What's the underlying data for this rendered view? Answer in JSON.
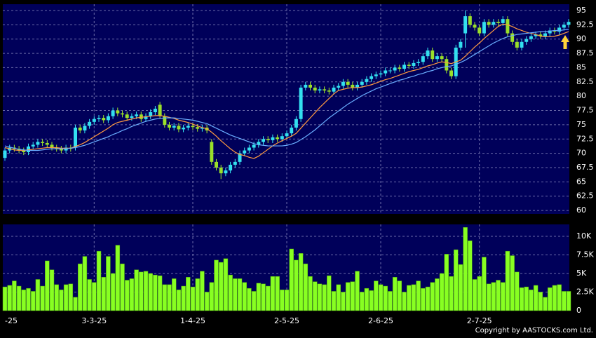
{
  "chart_data": {
    "type": "candlestick",
    "up_color": "#33e0f0",
    "down_color": "#9ae02a",
    "grid": true,
    "x_labels": [
      {
        "index": 0,
        "label": "-25"
      },
      {
        "index": 19,
        "label": "3-3-25"
      },
      {
        "index": 40,
        "label": "1-4-25"
      },
      {
        "index": 60,
        "label": "2-5-25"
      },
      {
        "index": 80,
        "label": "2-6-25"
      },
      {
        "index": 101,
        "label": "2-7-25"
      }
    ],
    "ylim": [
      59.4,
      96.1
    ],
    "yticks": [
      60,
      62.5,
      65,
      67.5,
      70,
      72.5,
      75,
      77.5,
      80,
      82.5,
      85,
      87.5,
      90,
      92.5,
      95
    ],
    "open": [
      69.2,
      70.5,
      71,
      70.8,
      70.5,
      70.2,
      71.2,
      71.5,
      72,
      71.8,
      71.5,
      71,
      70.8,
      70.5,
      71,
      71,
      74.5,
      74,
      74.8,
      75.5,
      76,
      76.2,
      75.8,
      76.5,
      77.5,
      77,
      76.8,
      76.2,
      76.5,
      76.8,
      76,
      76.5,
      77.2,
      78.5,
      76.5,
      75,
      74.5,
      74.8,
      74.2,
      74.5,
      74.8,
      74.6,
      74.3,
      74.5,
      72,
      68.5,
      67.5,
      66.5,
      67,
      68,
      68.5,
      70,
      70.5,
      71,
      71.5,
      72,
      72.5,
      72.3,
      72.8,
      72.5,
      73,
      73.5,
      74.5,
      76,
      81.5,
      82,
      81.5,
      81,
      81.2,
      81,
      80.8,
      81.5,
      81.8,
      82.5,
      82,
      81.5,
      82,
      82.5,
      83,
      83.5,
      83.8,
      84,
      84.5,
      84.5,
      85,
      84.8,
      85.5,
      85.3,
      85.8,
      86,
      87,
      88,
      86.5,
      87,
      86.5,
      84.5,
      83.5,
      88.5,
      91,
      94,
      92.5,
      92,
      91,
      93,
      92.5,
      93,
      92.8,
      93.5,
      91,
      89.5,
      88.5,
      89.5,
      90,
      90.5,
      90.8,
      90.5,
      91,
      91.5,
      91.3,
      92,
      92.5
    ],
    "high": [
      71,
      71.5,
      71.5,
      71.3,
      71,
      71.7,
      72,
      72.5,
      72.5,
      72.3,
      72,
      71.5,
      71.3,
      71.5,
      71.5,
      75,
      75,
      75.3,
      76,
      76.5,
      76.7,
      76.7,
      77,
      78,
      78,
      77.5,
      77.3,
      77,
      77.3,
      77.3,
      77,
      77.7,
      78.3,
      79,
      77,
      75.5,
      75.3,
      75.3,
      75,
      75.3,
      75.3,
      75.1,
      75,
      75,
      72.5,
      69,
      68,
      67.5,
      68.5,
      69,
      70.5,
      71,
      71.5,
      72,
      72.5,
      73,
      73,
      73.3,
      73.3,
      73.5,
      74,
      75,
      76.5,
      82,
      82.5,
      82.5,
      82,
      81.7,
      81.7,
      81.5,
      82,
      82.3,
      83,
      83,
      82.5,
      82.5,
      83,
      83.5,
      84,
      84.3,
      84.5,
      85,
      85,
      85.5,
      85.5,
      86,
      86,
      86.3,
      86.5,
      87.5,
      88.5,
      88.5,
      87.5,
      87.5,
      87,
      85,
      89,
      90,
      95,
      94.5,
      93,
      92.5,
      93.5,
      93.5,
      93.5,
      93.5,
      94,
      94,
      91.5,
      90,
      90,
      90.5,
      91,
      91.3,
      91.3,
      91.5,
      92,
      92,
      92.5,
      93,
      93.5
    ],
    "low": [
      68.7,
      70,
      70.3,
      70,
      69.7,
      69.7,
      70.7,
      71,
      71.3,
      71,
      70.5,
      70.3,
      70,
      70,
      70.3,
      70.5,
      73.5,
      73.5,
      74.3,
      75,
      75.5,
      75.3,
      75.3,
      76,
      76.5,
      76.3,
      75.7,
      75.7,
      76,
      75.5,
      75.5,
      76,
      76.7,
      76,
      74.5,
      74,
      74,
      73.7,
      73.7,
      74,
      74.1,
      73.8,
      73.8,
      73.5,
      68,
      67,
      65.5,
      66,
      66.5,
      67.5,
      68,
      69.5,
      70,
      70.5,
      71,
      71.5,
      71.8,
      71.8,
      72,
      72,
      72.5,
      73,
      74,
      75.5,
      81,
      81,
      80.5,
      80.5,
      80.5,
      80.3,
      80.3,
      81,
      81.3,
      81.5,
      81,
      81,
      81.5,
      82,
      82.5,
      83,
      83.3,
      83.5,
      84,
      84,
      84.3,
      84.3,
      84.8,
      84.8,
      85.3,
      85.5,
      86.5,
      86,
      86,
      86,
      84,
      83,
      83,
      88,
      88.5,
      92,
      91.5,
      90.5,
      90.5,
      92,
      92,
      92.3,
      92.3,
      90.5,
      89,
      88,
      88,
      89,
      89.5,
      90,
      90,
      90,
      90.5,
      90.8,
      90.8,
      91.5,
      92
    ],
    "close": [
      70.5,
      71,
      70.8,
      70.5,
      70.2,
      71.2,
      71.5,
      72,
      71.8,
      71.5,
      71,
      70.8,
      70.5,
      71,
      70.8,
      74.5,
      74,
      74.8,
      75.5,
      76,
      76.2,
      75.8,
      76.5,
      77.5,
      77,
      76.8,
      76.2,
      76.5,
      76.8,
      76,
      76.5,
      77.2,
      77.8,
      76.5,
      75,
      74.5,
      74.8,
      74.2,
      74.5,
      74.8,
      74.6,
      74.3,
      74.5,
      74,
      68.5,
      67.5,
      66.5,
      67,
      68,
      68.5,
      70,
      70.5,
      71,
      71.5,
      72,
      72.5,
      72.3,
      72.8,
      72.5,
      73,
      73.5,
      74.5,
      76,
      81.5,
      82,
      81.5,
      81,
      81.2,
      81,
      80.8,
      81.5,
      81.8,
      82.5,
      82,
      81.5,
      82,
      82.5,
      83,
      83.5,
      83.8,
      84,
      84.5,
      84.5,
      85,
      84.8,
      85.5,
      85.3,
      85.8,
      86,
      87,
      88,
      86.5,
      87,
      86.5,
      84.5,
      83.5,
      88.5,
      89.5,
      94,
      92.5,
      92,
      91,
      93,
      92.5,
      93,
      92.8,
      93.5,
      91,
      89.5,
      88.5,
      89.5,
      90,
      90.5,
      90.8,
      90.5,
      91,
      91.5,
      91.3,
      92,
      92.5,
      93
    ],
    "series": [
      {
        "color": "#ff9a40",
        "values": [
          71,
          70.8,
          70.6,
          70.5,
          70.5,
          70.6,
          70.7,
          70.8,
          70.9,
          71,
          71,
          71,
          70.9,
          70.9,
          70.9,
          71.2,
          71.5,
          71.9,
          72.4,
          72.9,
          73.4,
          73.9,
          74.4,
          75,
          75.4,
          75.6,
          75.8,
          76,
          76.2,
          76.3,
          76.4,
          76.5,
          76.6,
          76.6,
          76.5,
          76.3,
          76.1,
          75.8,
          75.6,
          75.4,
          75.1,
          74.8,
          74.5,
          74.3,
          73.7,
          73,
          72.2,
          71.5,
          70.8,
          70.2,
          69.8,
          69.6,
          69.3,
          69.1,
          69.5,
          70.1,
          70.7,
          71.3,
          71.8,
          72.2,
          72.6,
          73,
          73.5,
          74.4,
          75.3,
          76.2,
          77.1,
          78,
          78.8,
          79.6,
          80.4,
          81,
          81.2,
          81.4,
          81.5,
          81.5,
          81.6,
          81.8,
          82,
          82.3,
          82.6,
          82.9,
          83.1,
          83.4,
          83.7,
          84,
          84.3,
          84.5,
          84.7,
          85,
          85.3,
          85.5,
          85.8,
          86,
          85.9,
          85.7,
          86,
          86.3,
          87,
          87.8,
          88.6,
          89.3,
          90.1,
          90.8,
          91.5,
          92.2,
          92.6,
          92.5,
          92.2,
          91.8,
          91.5,
          91.2,
          91,
          90.8,
          90.5,
          90.4,
          90.4,
          90.5,
          90.7,
          91,
          91.3
        ]
      },
      {
        "color": "#6aaeff",
        "values": [
          71.3,
          71.1,
          70.9,
          70.7,
          70.6,
          70.5,
          70.5,
          70.5,
          70.6,
          70.7,
          70.8,
          70.8,
          70.8,
          70.8,
          70.9,
          71,
          71.2,
          71.4,
          71.7,
          72,
          72.3,
          72.6,
          72.9,
          73.3,
          73.6,
          74,
          74.3,
          74.7,
          75,
          75.3,
          75.6,
          75.8,
          76,
          76.1,
          76.2,
          76.2,
          76.2,
          76.1,
          76,
          75.9,
          75.8,
          75.6,
          75.4,
          75.2,
          74.8,
          74.4,
          74,
          73.6,
          73.2,
          72.9,
          72.6,
          72.3,
          72,
          71.7,
          71.5,
          71.4,
          71.3,
          71.3,
          71.3,
          71.3,
          71.4,
          71.6,
          71.9,
          72.4,
          72.9,
          73.5,
          74.1,
          74.8,
          75.5,
          76.2,
          76.8,
          77.4,
          78,
          78.6,
          79.1,
          79.6,
          80.1,
          80.5,
          80.9,
          81.3,
          81.6,
          81.9,
          82.2,
          82.5,
          82.8,
          83,
          83.3,
          83.5,
          83.8,
          84,
          84.3,
          84.5,
          84.8,
          85,
          85.2,
          85.3,
          85.6,
          85.9,
          86.3,
          86.8,
          87.3,
          87.8,
          88.3,
          88.8,
          89.3,
          89.7,
          90.1,
          90.4,
          90.6,
          90.8,
          90.9,
          91,
          91.1,
          91.2,
          91.3,
          91.3,
          91.4,
          91.5,
          91.5,
          91.6,
          91.7
        ]
      }
    ],
    "volume": {
      "color": "#88ff22",
      "ylim": [
        0,
        11600
      ],
      "yticks": [
        0,
        {
          "value": 2500,
          "label": "2.5K"
        },
        {
          "value": 5000,
          "label": "5K"
        },
        {
          "value": 7500,
          "label": "7.5K"
        },
        {
          "value": 10000,
          "label": "10K"
        }
      ],
      "values": [
        3200,
        3400,
        4000,
        3300,
        2800,
        3000,
        2600,
        4200,
        3300,
        6700,
        5500,
        3500,
        2800,
        3500,
        3600,
        1800,
        6300,
        7300,
        4200,
        3800,
        8000,
        4500,
        7300,
        5000,
        8800,
        6300,
        4100,
        4300,
        5500,
        5200,
        5300,
        5000,
        4800,
        4700,
        3500,
        3500,
        4300,
        2800,
        3300,
        4500,
        3200,
        4300,
        5300,
        2500,
        3800,
        6800,
        6500,
        7000,
        4800,
        4300,
        4300,
        3800,
        3000,
        2600,
        3700,
        3600,
        3300,
        4600,
        4600,
        2800,
        2800,
        8300,
        6800,
        7700,
        6300,
        4600,
        3900,
        3600,
        3500,
        4700,
        2600,
        3500,
        2500,
        3800,
        3900,
        5300,
        2500,
        3000,
        2700,
        4000,
        3500,
        3300,
        2600,
        4500,
        4000,
        2500,
        3400,
        3500,
        4000,
        3000,
        3200,
        3800,
        4300,
        5000,
        7600,
        4600,
        8200,
        6200,
        11200,
        9400,
        4200,
        4600,
        7200,
        3600,
        3800,
        4100,
        3800,
        8000,
        7400,
        5200,
        3100,
        3200,
        2800,
        3400,
        2500,
        1800,
        3100,
        3400,
        3500,
        2600,
        2600
      ]
    },
    "copyright": "Copyright by AASTOCKS.com Ltd."
  }
}
